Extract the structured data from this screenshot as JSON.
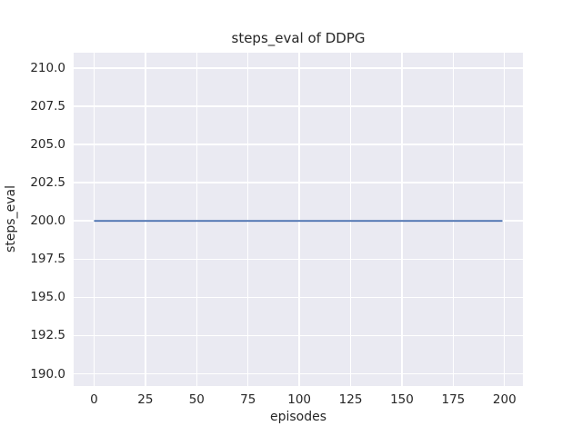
{
  "chart_data": {
    "type": "line",
    "title": "steps_eval of DDPG",
    "xlabel": "episodes",
    "ylabel": "steps_eval",
    "xlim": [
      -9.95,
      208.95
    ],
    "ylim": [
      189.2,
      211.0
    ],
    "x_ticks": [
      0,
      25,
      50,
      75,
      100,
      125,
      150,
      175,
      200
    ],
    "x_tick_labels": [
      "0",
      "25",
      "50",
      "75",
      "100",
      "125",
      "150",
      "175",
      "200"
    ],
    "y_ticks": [
      190.0,
      192.5,
      195.0,
      197.5,
      200.0,
      202.5,
      205.0,
      207.5,
      210.0
    ],
    "y_tick_labels": [
      "190.0",
      "192.5",
      "195.0",
      "197.5",
      "200.0",
      "202.5",
      "205.0",
      "207.5",
      "210.0"
    ],
    "grid": true,
    "legend": false,
    "series": [
      {
        "name": "DDPG steps_eval",
        "color": "#4C72B0",
        "x": [
          0,
          199
        ],
        "y": [
          200,
          200
        ]
      }
    ],
    "styles": {
      "plot_background": "#EAEAF2",
      "grid_color": "#FFFFFF",
      "text_color": "#262626",
      "figure_background": "#FFFFFF"
    }
  }
}
